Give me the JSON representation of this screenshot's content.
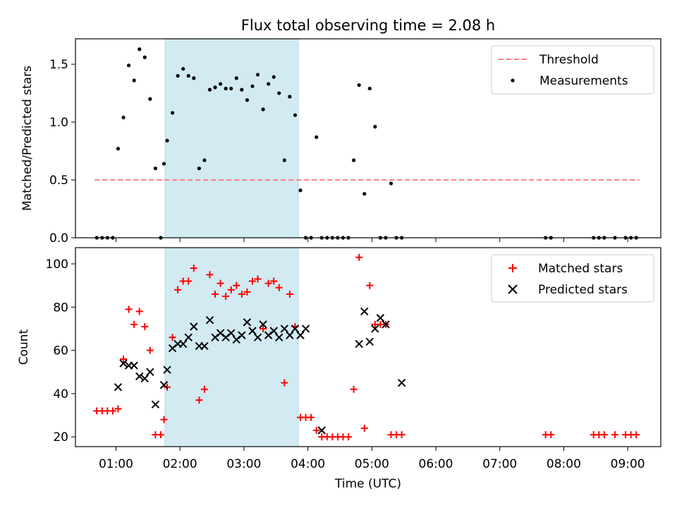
{
  "chart_data": [
    {
      "type": "scatter",
      "title": "Flux total observing time = 2.08 h",
      "xlabel": "",
      "ylabel": "Matched/Predicted stars",
      "xlim": [
        "00:22",
        "09:31"
      ],
      "ylim": [
        0,
        1.72
      ],
      "yticks": [
        0.0,
        0.5,
        1.0,
        1.5
      ],
      "ytick_labels": [
        "0.0",
        "0.5",
        "1.0",
        "1.5"
      ],
      "highlight_span": [
        "01:46",
        "03:51"
      ],
      "highlight_color": "#add8e6",
      "legend": {
        "position": "top-right",
        "entries": [
          "Threshold",
          "Measurements"
        ]
      },
      "threshold": {
        "name": "Threshold",
        "value": 0.5,
        "x_range": [
          "00:40",
          "09:11"
        ],
        "color": "#ff7f7f",
        "style": "dashed"
      },
      "series": [
        {
          "name": "Measurements",
          "marker": "dot",
          "color": "#000000",
          "x": [
            "00:42",
            "00:47",
            "00:52",
            "00:57",
            "01:02",
            "01:07",
            "01:12",
            "01:17",
            "01:22",
            "01:27",
            "01:32",
            "01:37",
            "01:42",
            "01:45",
            "01:48",
            "01:53",
            "01:58",
            "02:03",
            "02:08",
            "02:13",
            "02:18",
            "02:23",
            "02:28",
            "02:33",
            "02:38",
            "02:43",
            "02:48",
            "02:53",
            "02:58",
            "03:03",
            "03:08",
            "03:13",
            "03:18",
            "03:23",
            "03:28",
            "03:33",
            "03:38",
            "03:43",
            "03:48",
            "03:53",
            "03:58",
            "04:03",
            "04:08",
            "04:13",
            "04:18",
            "04:23",
            "04:28",
            "04:33",
            "04:38",
            "04:43",
            "04:48",
            "04:53",
            "04:58",
            "05:03",
            "05:08",
            "05:13",
            "05:18",
            "05:23",
            "05:28",
            "07:43",
            "07:48",
            "08:28",
            "08:33",
            "08:38",
            "08:48",
            "08:58",
            "09:03",
            "09:08"
          ],
          "y": [
            0,
            0,
            0,
            0,
            0.77,
            1.04,
            1.49,
            1.36,
            1.63,
            1.56,
            1.2,
            0.6,
            0,
            0.64,
            0.84,
            1.08,
            1.4,
            1.46,
            1.4,
            1.38,
            0.6,
            0.67,
            1.28,
            1.3,
            1.33,
            1.29,
            1.29,
            1.38,
            1.28,
            1.19,
            1.31,
            1.41,
            1.11,
            1.33,
            1.39,
            1.25,
            0.67,
            1.22,
            1.06,
            0.41,
            0,
            0,
            0.87,
            0,
            0,
            0,
            0,
            0,
            0,
            0.67,
            1.32,
            0.38,
            1.29,
            0.96,
            0,
            0,
            0.47,
            0,
            0,
            0,
            0,
            0,
            0,
            0,
            0,
            0,
            0,
            0
          ]
        }
      ]
    },
    {
      "type": "scatter",
      "title": "",
      "xlabel": "Time (UTC)",
      "ylabel": "Count",
      "xlim": [
        "00:22",
        "09:31"
      ],
      "ylim": [
        15.5,
        107.5
      ],
      "xticks": [
        "01:00",
        "02:00",
        "03:00",
        "04:00",
        "05:00",
        "06:00",
        "07:00",
        "08:00",
        "09:00"
      ],
      "yticks": [
        20,
        40,
        60,
        80,
        100
      ],
      "ytick_labels": [
        "20",
        "40",
        "60",
        "80",
        "100"
      ],
      "highlight_span": [
        "01:46",
        "03:51"
      ],
      "highlight_color": "#add8e6",
      "legend": {
        "position": "top-right",
        "entries": [
          "Matched stars",
          "Predicted stars"
        ]
      },
      "series": [
        {
          "name": "Matched stars",
          "marker": "plus",
          "color": "#ff0000",
          "x": [
            "00:42",
            "00:47",
            "00:52",
            "00:57",
            "01:02",
            "01:07",
            "01:12",
            "01:17",
            "01:22",
            "01:27",
            "01:32",
            "01:37",
            "01:42",
            "01:45",
            "01:48",
            "01:53",
            "01:58",
            "02:03",
            "02:08",
            "02:13",
            "02:18",
            "02:23",
            "02:28",
            "02:33",
            "02:38",
            "02:43",
            "02:48",
            "02:53",
            "02:58",
            "03:03",
            "03:08",
            "03:13",
            "03:18",
            "03:23",
            "03:28",
            "03:33",
            "03:38",
            "03:43",
            "03:48",
            "03:53",
            "03:58",
            "04:03",
            "04:08",
            "04:13",
            "04:18",
            "04:23",
            "04:28",
            "04:33",
            "04:38",
            "04:43",
            "04:48",
            "04:53",
            "04:58",
            "05:03",
            "05:08",
            "05:13",
            "05:18",
            "05:23",
            "05:28",
            "07:43",
            "07:48",
            "08:28",
            "08:33",
            "08:38",
            "08:48",
            "08:58",
            "09:03",
            "09:08"
          ],
          "y": [
            32,
            32,
            32,
            32,
            33,
            56,
            79,
            72,
            78,
            71,
            60,
            21,
            21,
            28,
            43,
            66,
            88,
            92,
            92,
            98,
            37,
            42,
            95,
            86,
            91,
            85,
            88,
            90,
            86,
            87,
            92,
            93,
            70,
            91,
            92,
            89,
            45,
            86,
            71,
            29,
            29,
            29,
            23,
            20,
            20,
            20,
            20,
            20,
            20,
            42,
            103,
            24,
            90,
            72,
            72,
            72,
            21,
            21,
            21,
            21,
            21,
            21,
            21,
            21,
            21,
            21,
            21,
            21
          ]
        },
        {
          "name": "Predicted stars",
          "marker": "x",
          "color": "#000000",
          "x": [
            "01:02",
            "01:07",
            "01:12",
            "01:17",
            "01:22",
            "01:27",
            "01:32",
            "01:37",
            "01:45",
            "01:48",
            "01:53",
            "01:58",
            "02:03",
            "02:08",
            "02:13",
            "02:18",
            "02:23",
            "02:28",
            "02:33",
            "02:38",
            "02:43",
            "02:48",
            "02:53",
            "02:58",
            "03:03",
            "03:08",
            "03:13",
            "03:18",
            "03:23",
            "03:28",
            "03:33",
            "03:38",
            "03:43",
            "03:48",
            "03:53",
            "03:58",
            "04:13",
            "04:48",
            "04:53",
            "04:58",
            "05:03",
            "05:08",
            "05:13",
            "05:28"
          ],
          "y": [
            43,
            54,
            53,
            53,
            48,
            47,
            50,
            35,
            44,
            51,
            61,
            63,
            63,
            66,
            71,
            62,
            62,
            74,
            66,
            68,
            66,
            68,
            65,
            67,
            73,
            69,
            66,
            72,
            67,
            69,
            66,
            70,
            67,
            70,
            67,
            70,
            23,
            63,
            78,
            64,
            70,
            75,
            72,
            45
          ]
        }
      ]
    }
  ]
}
